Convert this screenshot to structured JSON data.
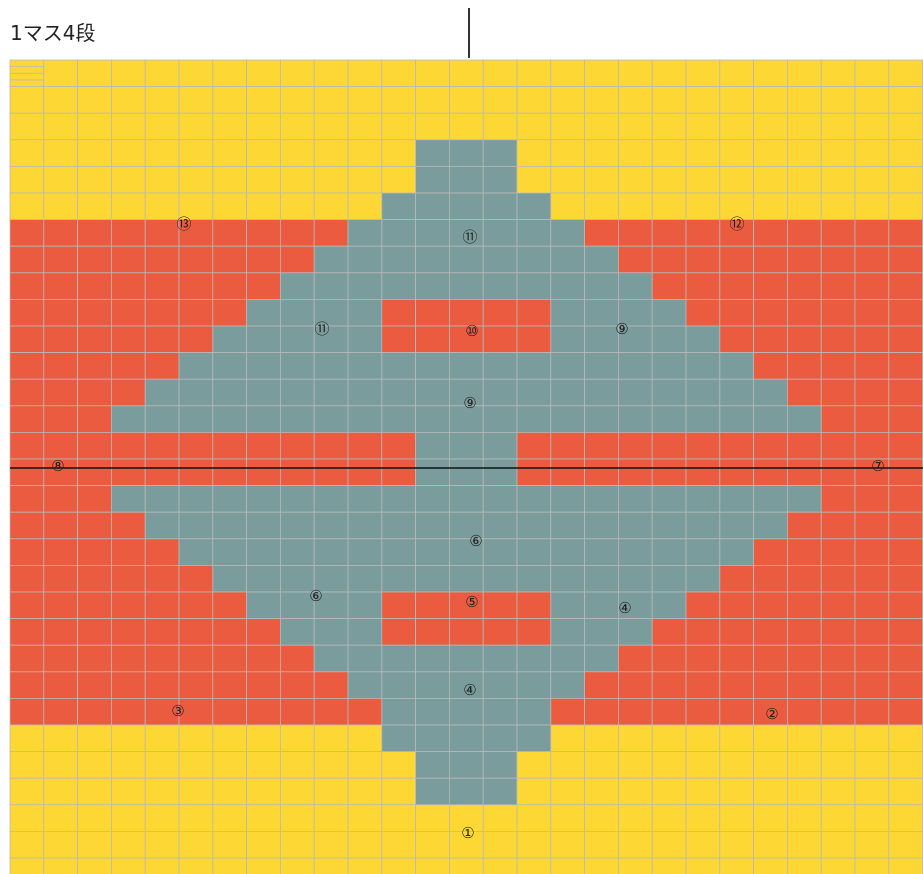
{
  "caption": "1マス4段",
  "colors": {
    "yellow": "#FDD835",
    "red": "#EA5B40",
    "teal": "#7A9C9C",
    "grid": "#B9B9B9",
    "line": "#111111"
  },
  "grid": {
    "cols": 27,
    "rows": 31,
    "rowSpans": [
      [
        0,
        0,
        0,
        27
      ],
      [
        1,
        0,
        0,
        27
      ],
      [
        2,
        0,
        0,
        27
      ],
      [
        3,
        0,
        0,
        27
      ],
      [
        4,
        0,
        12,
        15
      ],
      [
        5,
        0,
        12,
        15
      ],
      [
        6,
        0,
        11,
        16
      ],
      [
        7,
        11,
        16,
        0
      ],
      [
        8,
        10,
        17,
        0
      ],
      [
        9,
        9,
        18,
        0
      ],
      [
        10,
        8,
        19,
        0
      ],
      [
        11,
        7,
        20,
        0
      ],
      [
        12,
        6,
        21,
        0
      ],
      [
        13,
        5,
        22,
        0
      ],
      [
        14,
        4,
        23,
        0
      ],
      [
        15,
        3,
        24,
        0
      ],
      [
        16,
        3,
        12,
        15,
        24,
        0
      ],
      [
        17,
        3,
        12,
        15,
        24,
        0
      ],
      [
        18,
        3,
        24,
        0
      ],
      [
        19,
        4,
        23,
        0
      ],
      [
        20,
        5,
        22,
        0
      ],
      [
        21,
        6,
        21,
        0
      ],
      [
        22,
        7,
        20,
        0
      ],
      [
        23,
        8,
        19,
        0
      ],
      [
        24,
        9,
        18,
        0
      ],
      [
        25,
        10,
        17,
        0
      ],
      [
        26,
        0,
        11,
        16
      ],
      [
        27,
        0,
        12,
        15
      ],
      [
        28,
        0,
        12,
        15
      ],
      [
        29,
        0,
        0,
        27
      ],
      [
        30,
        0,
        0,
        27
      ]
    ],
    "redBars": [
      [
        11,
        11,
        16
      ],
      [
        21,
        11,
        16
      ]
    ]
  },
  "labels": [
    "①",
    "②",
    "③",
    "④",
    "④",
    "⑤",
    "⑥",
    "⑥",
    "⑦",
    "⑧",
    "⑨",
    "⑨",
    "⑩",
    "⑪",
    "⑪",
    "⑫",
    "⑬"
  ]
}
